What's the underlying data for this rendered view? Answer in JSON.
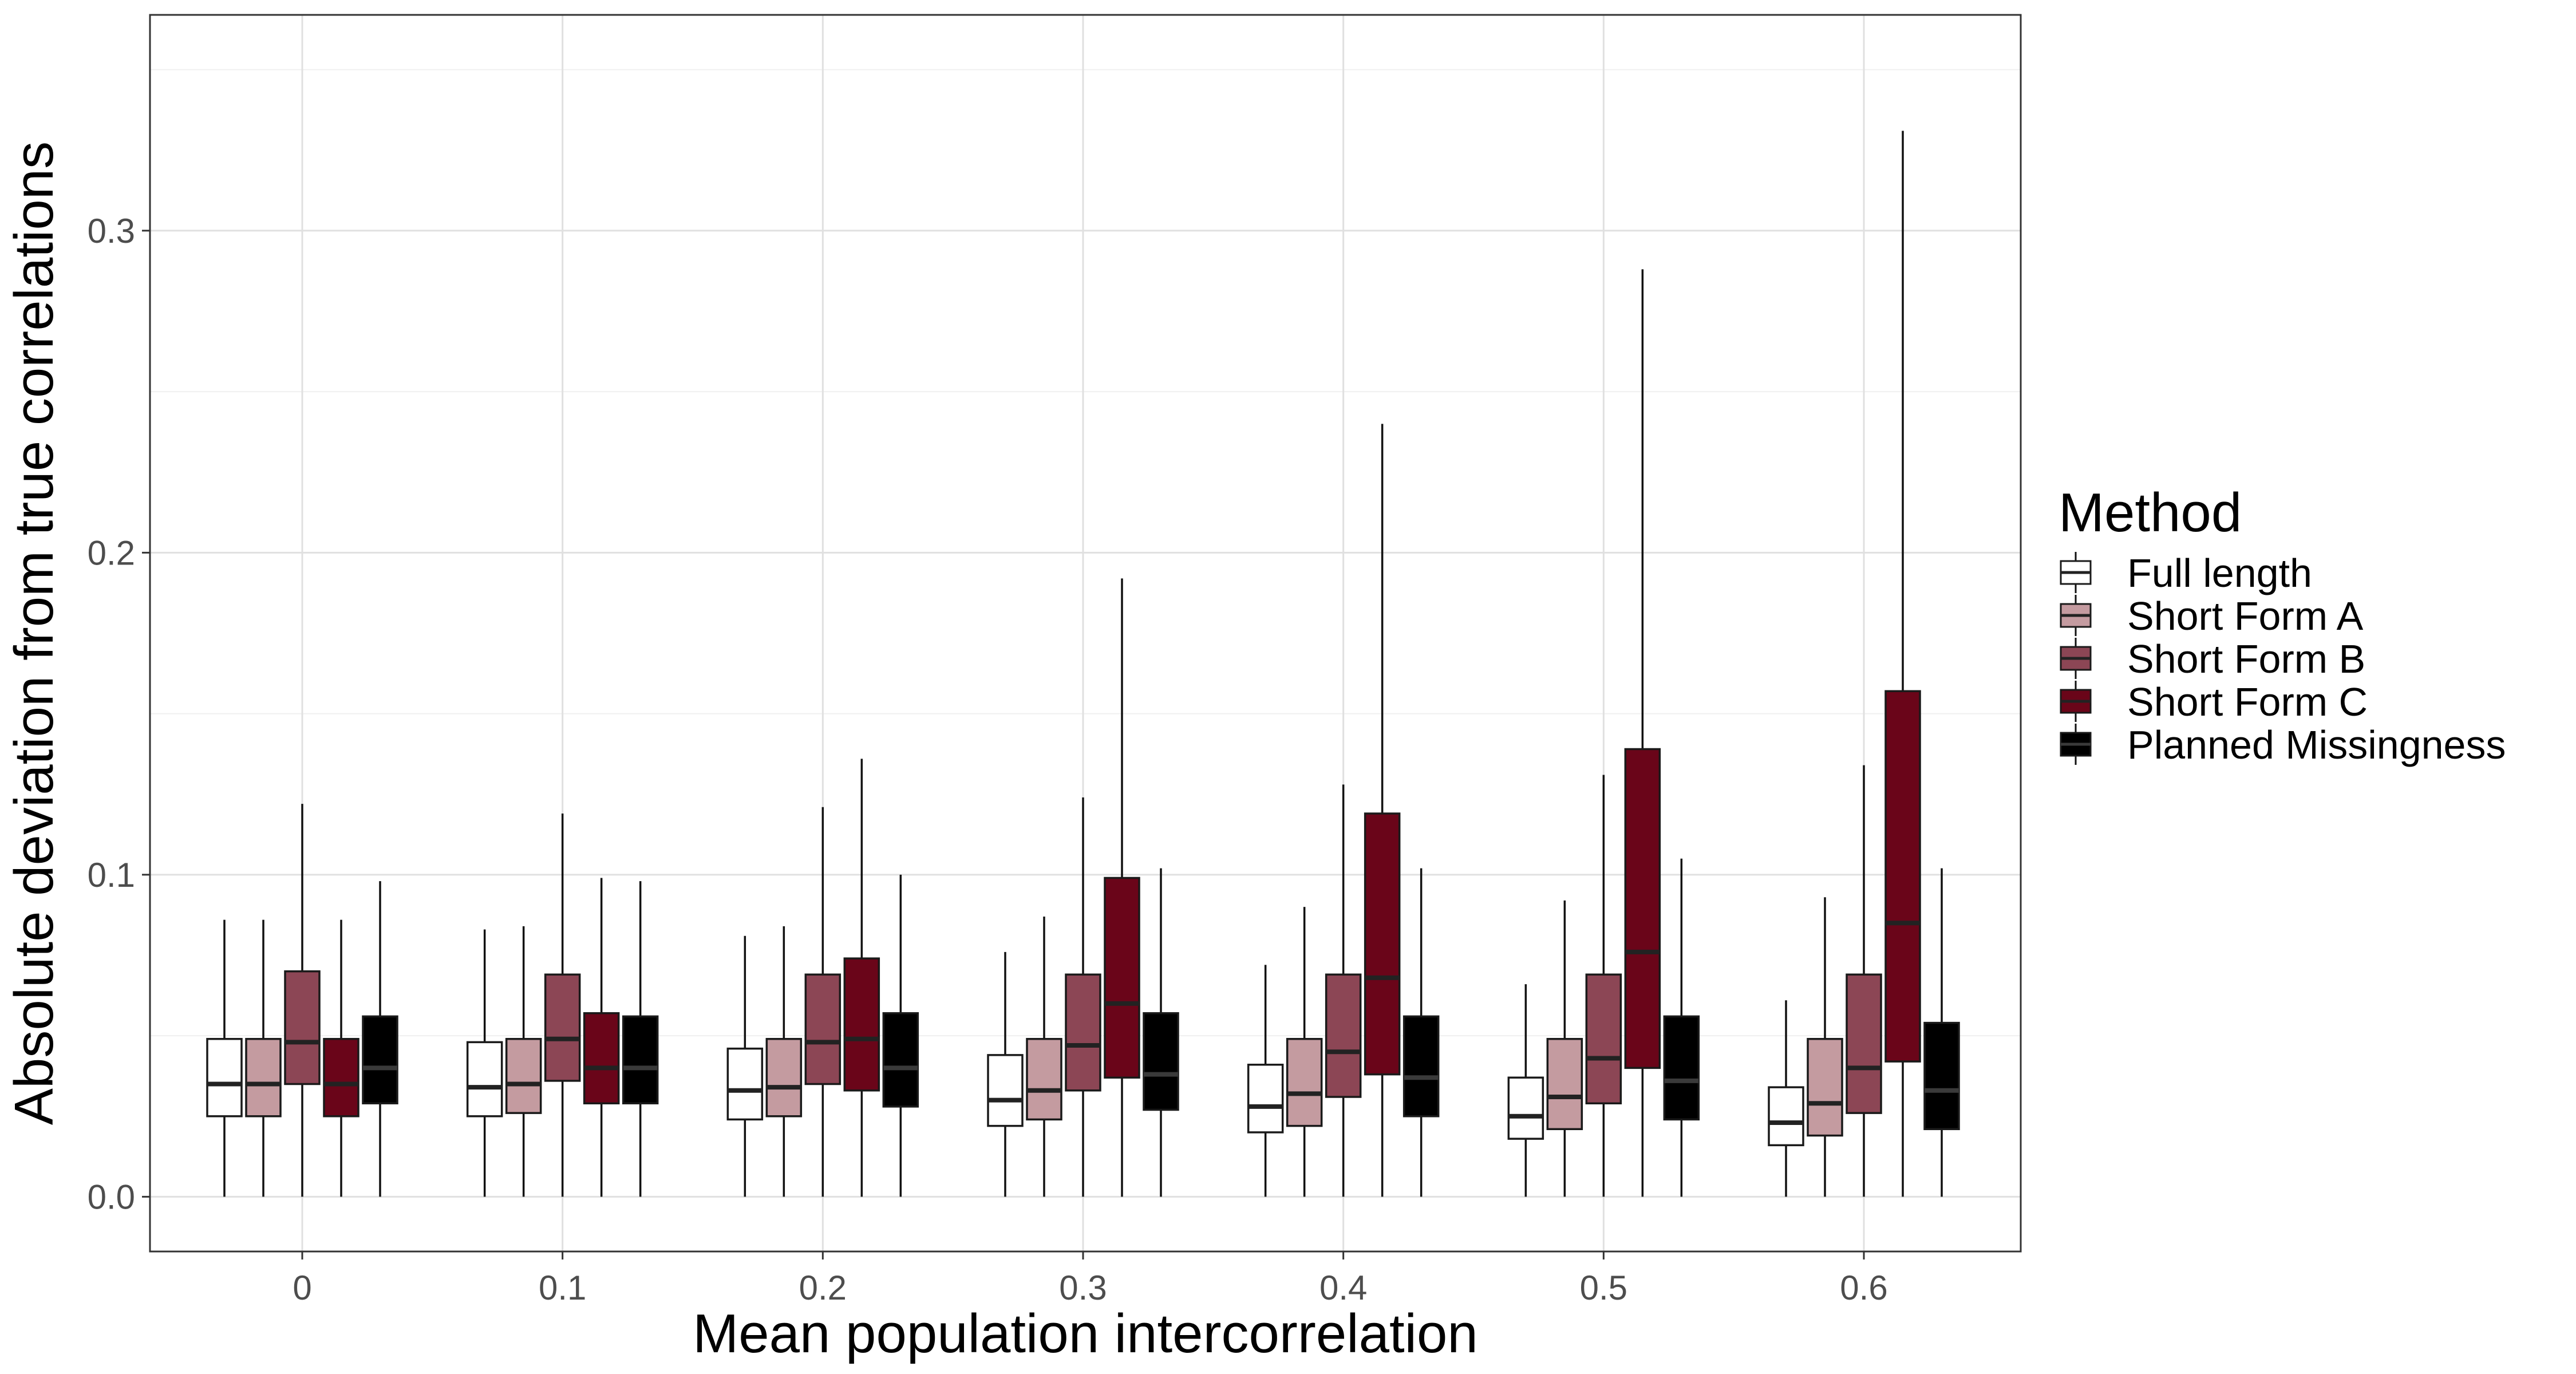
{
  "chart_data": {
    "type": "boxplot",
    "xlabel": "Mean population intercorrelation",
    "ylabel": "Absolute deviation from true correlations",
    "categories": [
      "0",
      "0.1",
      "0.2",
      "0.3",
      "0.4",
      "0.5",
      "0.6"
    ],
    "ylim": [
      -0.017,
      0.367
    ],
    "yticks": [
      "0.0",
      "0.1",
      "0.2",
      "0.3"
    ],
    "ytick_values": [
      0,
      0.1,
      0.2,
      0.3
    ],
    "grid": true,
    "legend": {
      "title": "Method",
      "position": "right"
    },
    "series": [
      {
        "name": "Full length",
        "color": "#ffffff",
        "boxes": [
          {
            "min": 0,
            "q1": 0.025,
            "median": 0.035,
            "q3": 0.049,
            "max": 0.086
          },
          {
            "min": 0,
            "q1": 0.025,
            "median": 0.034,
            "q3": 0.048,
            "max": 0.083
          },
          {
            "min": 0,
            "q1": 0.024,
            "median": 0.033,
            "q3": 0.046,
            "max": 0.081
          },
          {
            "min": 0,
            "q1": 0.022,
            "median": 0.03,
            "q3": 0.044,
            "max": 0.076
          },
          {
            "min": 0,
            "q1": 0.02,
            "median": 0.028,
            "q3": 0.041,
            "max": 0.072
          },
          {
            "min": 0,
            "q1": 0.018,
            "median": 0.025,
            "q3": 0.037,
            "max": 0.066
          },
          {
            "min": 0,
            "q1": 0.016,
            "median": 0.023,
            "q3": 0.034,
            "max": 0.061
          }
        ]
      },
      {
        "name": "Short Form A",
        "color": "#c49ba0",
        "boxes": [
          {
            "min": 0,
            "q1": 0.025,
            "median": 0.035,
            "q3": 0.049,
            "max": 0.086
          },
          {
            "min": 0,
            "q1": 0.026,
            "median": 0.035,
            "q3": 0.049,
            "max": 0.084
          },
          {
            "min": 0,
            "q1": 0.025,
            "median": 0.034,
            "q3": 0.049,
            "max": 0.084
          },
          {
            "min": 0,
            "q1": 0.024,
            "median": 0.033,
            "q3": 0.049,
            "max": 0.087
          },
          {
            "min": 0,
            "q1": 0.022,
            "median": 0.032,
            "q3": 0.049,
            "max": 0.09
          },
          {
            "min": 0,
            "q1": 0.021,
            "median": 0.031,
            "q3": 0.049,
            "max": 0.092
          },
          {
            "min": 0,
            "q1": 0.019,
            "median": 0.029,
            "q3": 0.049,
            "max": 0.093
          }
        ]
      },
      {
        "name": "Short Form B",
        "color": "#8c4655",
        "boxes": [
          {
            "min": 0,
            "q1": 0.035,
            "median": 0.048,
            "q3": 0.07,
            "max": 0.122
          },
          {
            "min": 0,
            "q1": 0.036,
            "median": 0.049,
            "q3": 0.069,
            "max": 0.119
          },
          {
            "min": 0,
            "q1": 0.035,
            "median": 0.048,
            "q3": 0.069,
            "max": 0.121
          },
          {
            "min": 0,
            "q1": 0.033,
            "median": 0.047,
            "q3": 0.069,
            "max": 0.124
          },
          {
            "min": 0,
            "q1": 0.031,
            "median": 0.045,
            "q3": 0.069,
            "max": 0.128
          },
          {
            "min": 0,
            "q1": 0.029,
            "median": 0.043,
            "q3": 0.069,
            "max": 0.131
          },
          {
            "min": 0,
            "q1": 0.026,
            "median": 0.04,
            "q3": 0.069,
            "max": 0.134
          }
        ]
      },
      {
        "name": "Short Form C",
        "color": "#6a0519",
        "boxes": [
          {
            "min": 0,
            "q1": 0.025,
            "median": 0.035,
            "q3": 0.049,
            "max": 0.086
          },
          {
            "min": 0,
            "q1": 0.029,
            "median": 0.04,
            "q3": 0.057,
            "max": 0.099
          },
          {
            "min": 0,
            "q1": 0.033,
            "median": 0.049,
            "q3": 0.074,
            "max": 0.136
          },
          {
            "min": 0,
            "q1": 0.037,
            "median": 0.06,
            "q3": 0.099,
            "max": 0.192
          },
          {
            "min": 0,
            "q1": 0.038,
            "median": 0.068,
            "q3": 0.119,
            "max": 0.24
          },
          {
            "min": 0,
            "q1": 0.04,
            "median": 0.076,
            "q3": 0.139,
            "max": 0.288
          },
          {
            "min": 0,
            "q1": 0.042,
            "median": 0.085,
            "q3": 0.157,
            "max": 0.331
          }
        ]
      },
      {
        "name": "Planned Missingness",
        "color": "#000000",
        "boxes": [
          {
            "min": 0,
            "q1": 0.029,
            "median": 0.04,
            "q3": 0.056,
            "max": 0.098
          },
          {
            "min": 0,
            "q1": 0.029,
            "median": 0.04,
            "q3": 0.056,
            "max": 0.098
          },
          {
            "min": 0,
            "q1": 0.028,
            "median": 0.04,
            "q3": 0.057,
            "max": 0.1
          },
          {
            "min": 0,
            "q1": 0.027,
            "median": 0.038,
            "q3": 0.057,
            "max": 0.102
          },
          {
            "min": 0,
            "q1": 0.025,
            "median": 0.037,
            "q3": 0.056,
            "max": 0.102
          },
          {
            "min": 0,
            "q1": 0.024,
            "median": 0.036,
            "q3": 0.056,
            "max": 0.105
          },
          {
            "min": 0,
            "q1": 0.021,
            "median": 0.033,
            "q3": 0.054,
            "max": 0.102
          }
        ]
      }
    ]
  }
}
